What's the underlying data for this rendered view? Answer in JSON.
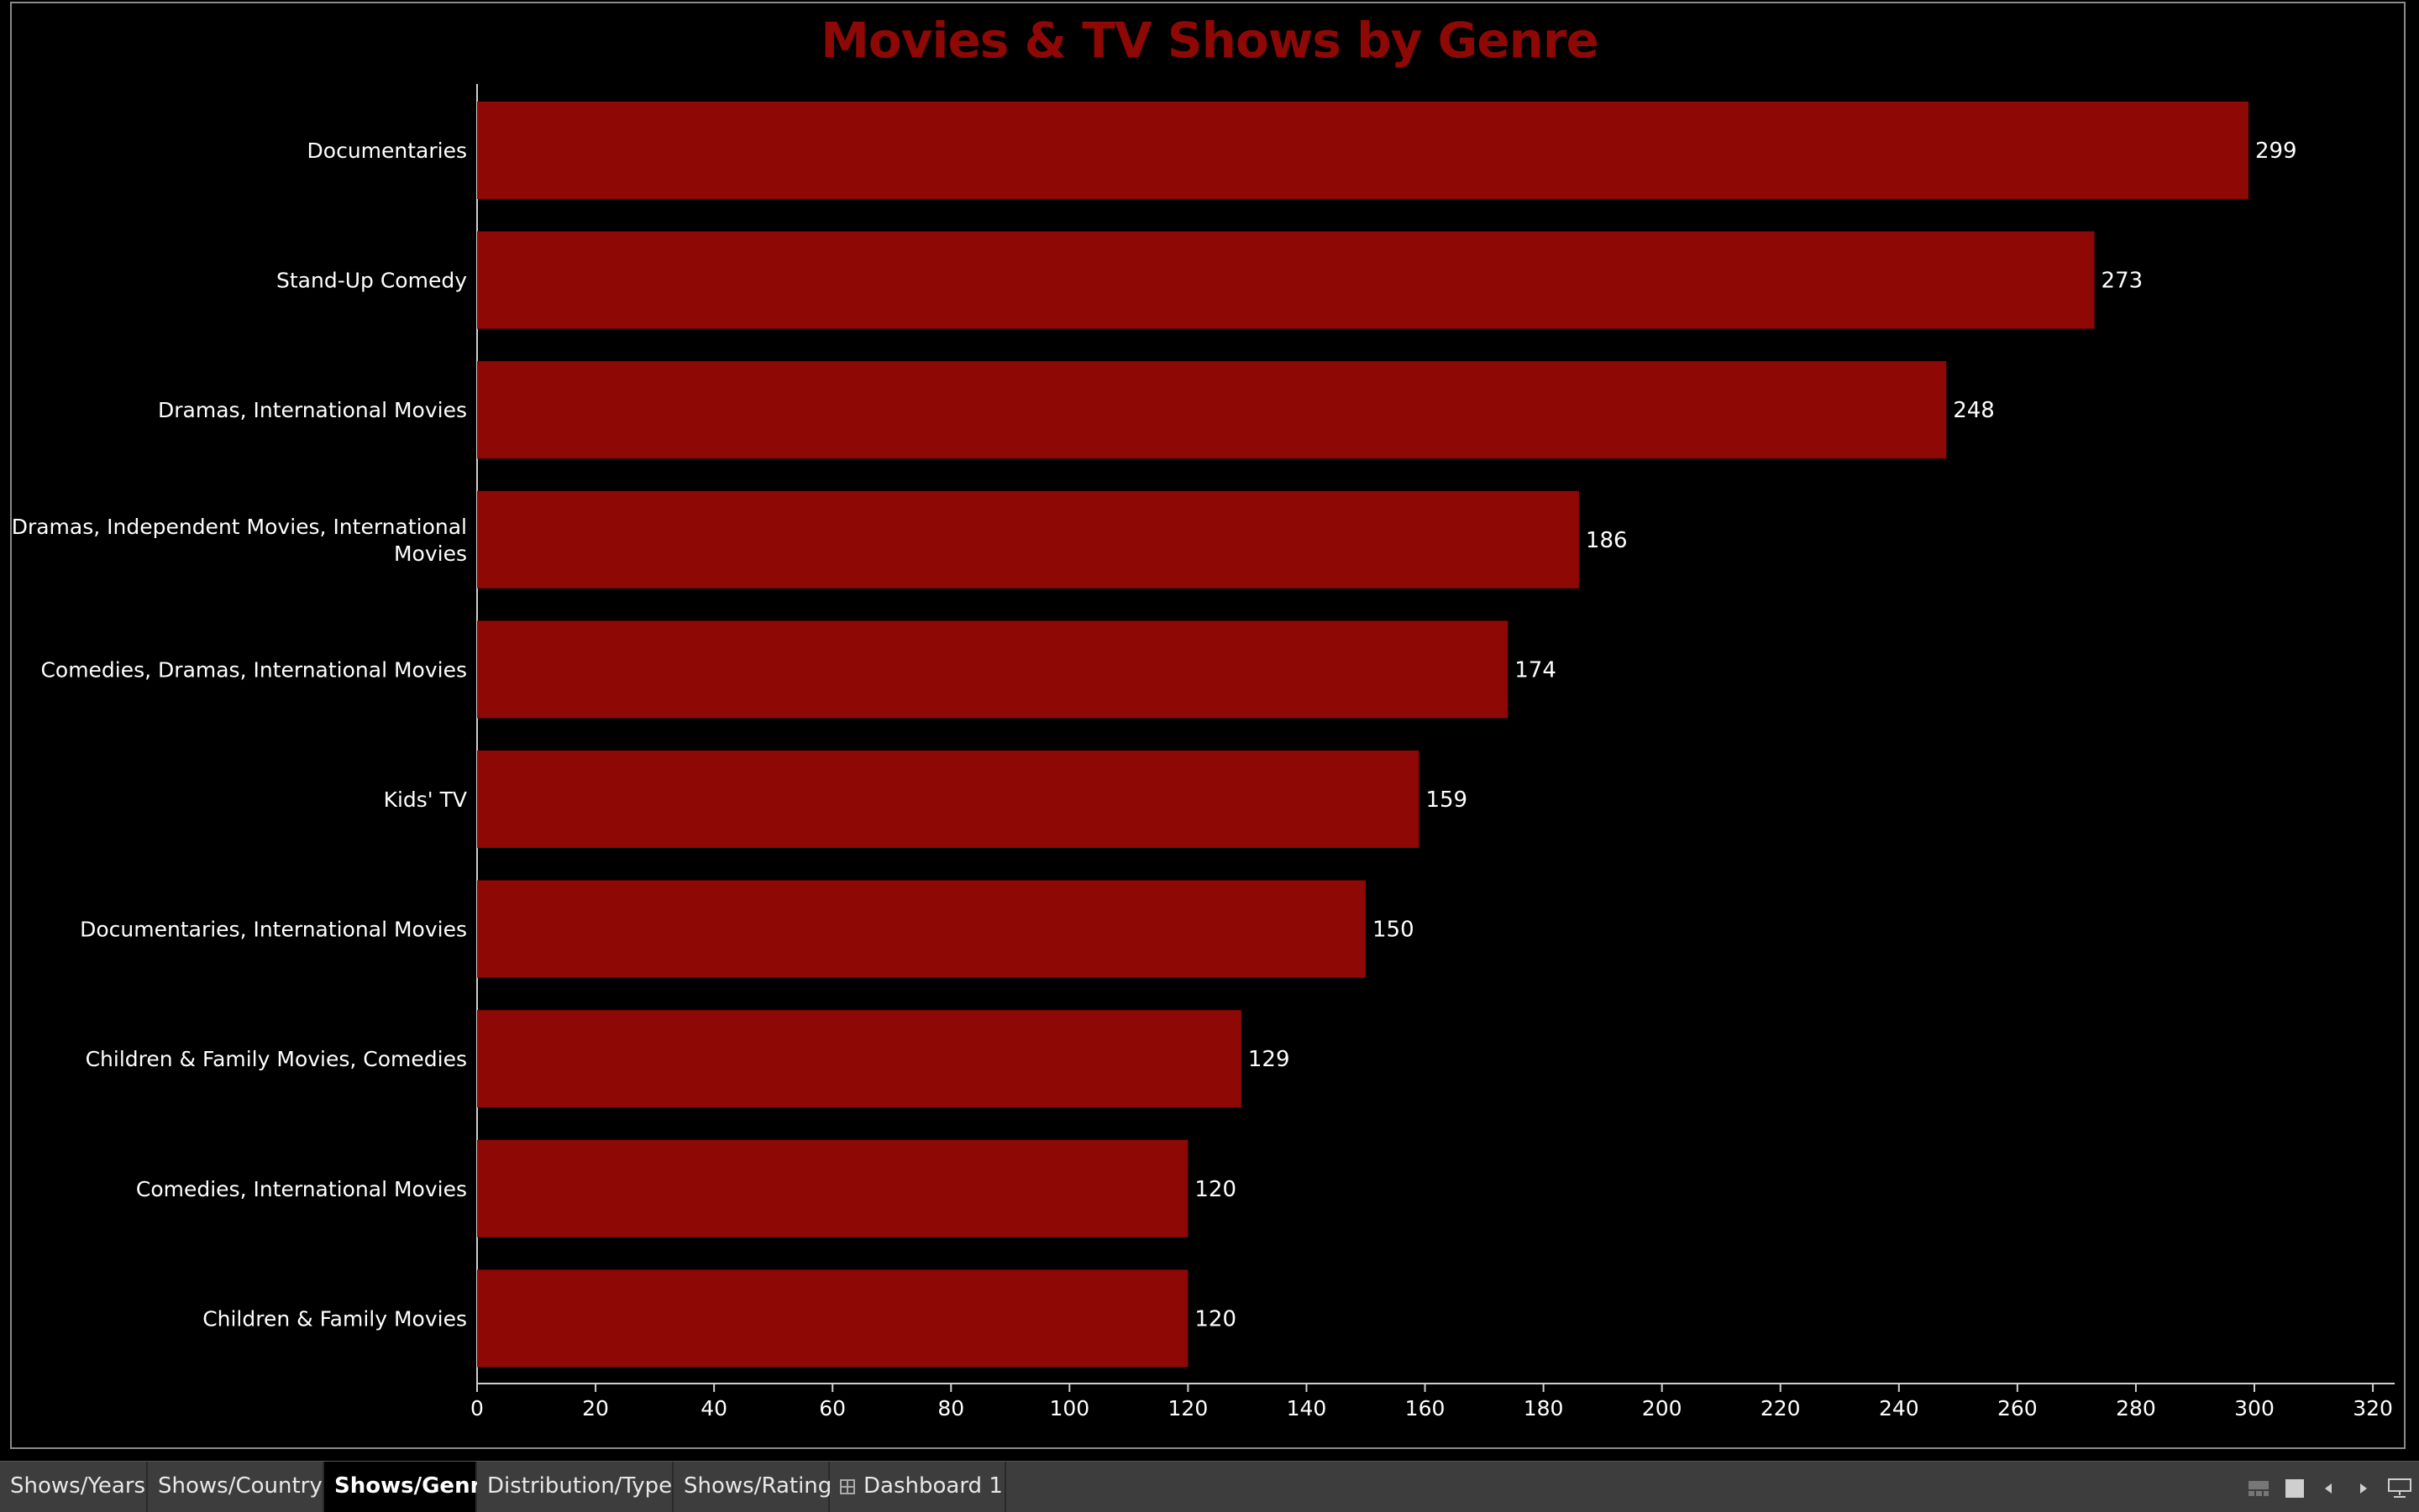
{
  "colors": {
    "bar": "#8e0806",
    "title": "#8e0806",
    "background": "#000000",
    "text": "#ffffff"
  },
  "chart_data": {
    "type": "bar",
    "orientation": "horizontal",
    "title": "Movies & TV Shows by Genre",
    "categories": [
      "Documentaries",
      "Stand-Up Comedy",
      "Dramas, International Movies",
      "Dramas, Independent Movies, International Movies",
      "Comedies, Dramas, International Movies",
      "Kids' TV",
      "Documentaries, International Movies",
      "Children & Family Movies, Comedies",
      "Comedies, International Movies",
      "Children & Family Movies"
    ],
    "category_label_lines": [
      [
        "Documentaries"
      ],
      [
        "Stand-Up Comedy"
      ],
      [
        "Dramas, International Movies"
      ],
      [
        "Dramas, Independent Movies, International",
        "Movies"
      ],
      [
        "Comedies, Dramas, International Movies"
      ],
      [
        "Kids' TV"
      ],
      [
        "Documentaries, International Movies"
      ],
      [
        "Children & Family Movies, Comedies"
      ],
      [
        "Comedies, International Movies"
      ],
      [
        "Children & Family Movies"
      ]
    ],
    "values": [
      299,
      273,
      248,
      186,
      174,
      159,
      150,
      129,
      120,
      120
    ],
    "xlim": [
      0,
      320
    ],
    "x_ticks": [
      0,
      20,
      40,
      60,
      80,
      100,
      120,
      140,
      160,
      180,
      200,
      220,
      240,
      260,
      280,
      300,
      320
    ],
    "xlabel": "",
    "ylabel": "",
    "grid": false,
    "data_labels": true
  },
  "tabs": [
    {
      "label": "Shows/Years",
      "active": false
    },
    {
      "label": "Shows/Country",
      "active": false
    },
    {
      "label": "Shows/Genre",
      "active": true
    },
    {
      "label": "Distribution/Type",
      "active": false
    },
    {
      "label": "Shows/Rating",
      "active": false
    },
    {
      "label": "Dashboard 1",
      "active": false,
      "icon": "dashboard-icon"
    }
  ],
  "controls": [
    "show-tabs-icon",
    "filmstrip-icon",
    "previous-sheet-icon",
    "next-sheet-icon",
    "presentation-mode-icon"
  ]
}
